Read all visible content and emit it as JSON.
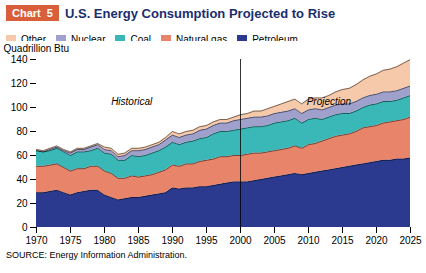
{
  "chart_data": {
    "type": "area",
    "stacked": true,
    "title": "U.S. Energy Consumption Projected to Rise",
    "chart_label": "Chart  5",
    "source": "SOURCE: Energy Information Administration.",
    "ylabel": "Quadrillion Btu",
    "x": [
      1970,
      1971,
      1972,
      1973,
      1974,
      1975,
      1976,
      1977,
      1978,
      1979,
      1980,
      1981,
      1982,
      1983,
      1984,
      1985,
      1986,
      1987,
      1988,
      1989,
      1990,
      1991,
      1992,
      1993,
      1994,
      1995,
      1996,
      1997,
      1998,
      1999,
      2000,
      2001,
      2002,
      2003,
      2004,
      2005,
      2006,
      2007,
      2008,
      2009,
      2010,
      2011,
      2012,
      2013,
      2014,
      2015,
      2016,
      2017,
      2018,
      2019,
      2020,
      2021,
      2022,
      2023,
      2024,
      2025
    ],
    "series": [
      {
        "name": "Petroleum",
        "color": "#2b3a8f",
        "values": [
          29,
          29,
          30,
          31,
          29,
          27,
          29,
          30,
          31,
          31,
          27,
          25,
          23,
          24,
          25,
          25,
          26,
          27,
          28,
          29,
          33,
          32,
          33,
          33,
          34,
          34,
          35,
          36,
          37,
          38,
          38,
          38,
          39,
          40,
          41,
          42,
          43,
          44,
          45,
          44,
          45,
          46,
          47,
          48,
          49,
          50,
          51,
          52,
          53,
          54,
          55,
          56,
          56,
          57,
          57,
          58
        ]
      },
      {
        "name": "Natural gas",
        "color": "#e8846a",
        "values": [
          22,
          22,
          22,
          22,
          21,
          20,
          20,
          19,
          20,
          20,
          20,
          20,
          18,
          17,
          18,
          17,
          17,
          17,
          18,
          19,
          19,
          19,
          20,
          20,
          21,
          22,
          22,
          23,
          22,
          22,
          22,
          23,
          23,
          22,
          22,
          22,
          22,
          22,
          23,
          22,
          24,
          24,
          25,
          26,
          27,
          27,
          27,
          28,
          30,
          30,
          30,
          31,
          32,
          32,
          33,
          34
        ]
      },
      {
        "name": "Coal",
        "color": "#3ab8b8",
        "values": [
          13,
          12,
          12,
          13,
          13,
          13,
          14,
          14,
          13,
          15,
          15,
          16,
          15,
          15,
          17,
          17,
          17,
          18,
          18,
          19,
          19,
          18,
          18,
          19,
          19,
          19,
          21,
          21,
          21,
          21,
          22,
          22,
          22,
          22,
          22,
          23,
          23,
          23,
          23,
          21,
          21,
          21,
          18,
          18,
          18,
          18,
          17,
          17,
          17,
          18,
          18,
          18,
          17,
          17,
          18,
          18
        ]
      },
      {
        "name": "Nuclear",
        "color": "#a0a0cc",
        "values": [
          0,
          0,
          1,
          1,
          1,
          2,
          2,
          2,
          3,
          3,
          3,
          3,
          3,
          4,
          4,
          5,
          5,
          5,
          5,
          6,
          6,
          6,
          6,
          6,
          7,
          7,
          7,
          7,
          7,
          8,
          8,
          8,
          8,
          8,
          8,
          8,
          8,
          8,
          8,
          8,
          8,
          8,
          8,
          8,
          8,
          8,
          8,
          8,
          8,
          8,
          8,
          8,
          8,
          8,
          8,
          8
        ]
      },
      {
        "name": "Other",
        "color": "#f5c9aa",
        "values": [
          1,
          1,
          1,
          1,
          1,
          1,
          1,
          1,
          1,
          1,
          2,
          2,
          2,
          2,
          2,
          2,
          2,
          2,
          2,
          2,
          3,
          3,
          3,
          3,
          3,
          3,
          3,
          3,
          3,
          3,
          4,
          4,
          5,
          5,
          6,
          6,
          7,
          8,
          8,
          8,
          9,
          9,
          10,
          10,
          11,
          12,
          13,
          14,
          15,
          16,
          17,
          18,
          19,
          20,
          21,
          22
        ]
      }
    ],
    "xlim": [
      1970,
      2025
    ],
    "xticks": [
      1970,
      1975,
      1980,
      1985,
      1990,
      1995,
      2000,
      2005,
      2010,
      2015,
      2020,
      2025
    ],
    "ylim": [
      0,
      140
    ],
    "yticks": [
      0,
      20,
      40,
      60,
      80,
      100,
      120,
      140
    ],
    "divider": 2000,
    "annotations": [
      {
        "text": "Historical",
        "x": 1984,
        "y": 105
      },
      {
        "text": "Projection",
        "x": 2013,
        "y": 105
      }
    ],
    "legend": "top"
  }
}
